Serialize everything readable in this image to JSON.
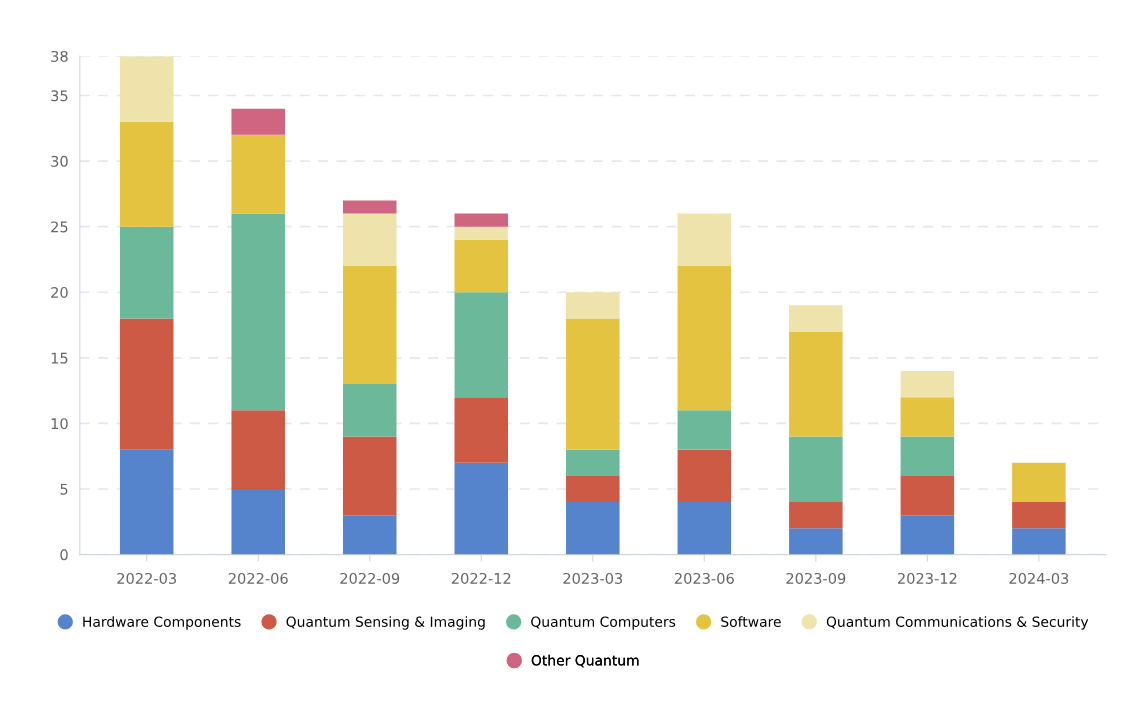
{
  "chart_data": {
    "type": "bar",
    "stacked": true,
    "categories": [
      "2022-03",
      "2022-06",
      "2022-09",
      "2022-12",
      "2023-03",
      "2023-06",
      "2023-09",
      "2023-12",
      "2024-03"
    ],
    "series": [
      {
        "name": "Hardware Components",
        "color": "#5584cc",
        "values": [
          8,
          5,
          3,
          7,
          4,
          4,
          2,
          3,
          2
        ]
      },
      {
        "name": "Quantum Sensing & Imaging",
        "color": "#cc5a45",
        "values": [
          10,
          6,
          6,
          5,
          2,
          4,
          2,
          3,
          2
        ]
      },
      {
        "name": "Quantum Computers",
        "color": "#6bb99a",
        "values": [
          7,
          15,
          4,
          8,
          2,
          3,
          5,
          3,
          0
        ]
      },
      {
        "name": "Software",
        "color": "#e3c340",
        "values": [
          8,
          6,
          9,
          4,
          10,
          11,
          8,
          3,
          3
        ]
      },
      {
        "name": "Quantum Communications & Security",
        "color": "#ede3ab",
        "values": [
          5,
          0,
          4,
          1,
          2,
          4,
          2,
          2,
          0
        ]
      },
      {
        "name": "Other Quantum",
        "color": "#cf6580",
        "values": [
          0,
          2,
          1,
          1,
          0,
          0,
          0,
          0,
          0
        ]
      }
    ],
    "ylim": [
      0,
      38
    ],
    "yticks": [
      0,
      5,
      10,
      15,
      20,
      25,
      30,
      35,
      38
    ],
    "grid": "y",
    "legend": "bottom"
  }
}
